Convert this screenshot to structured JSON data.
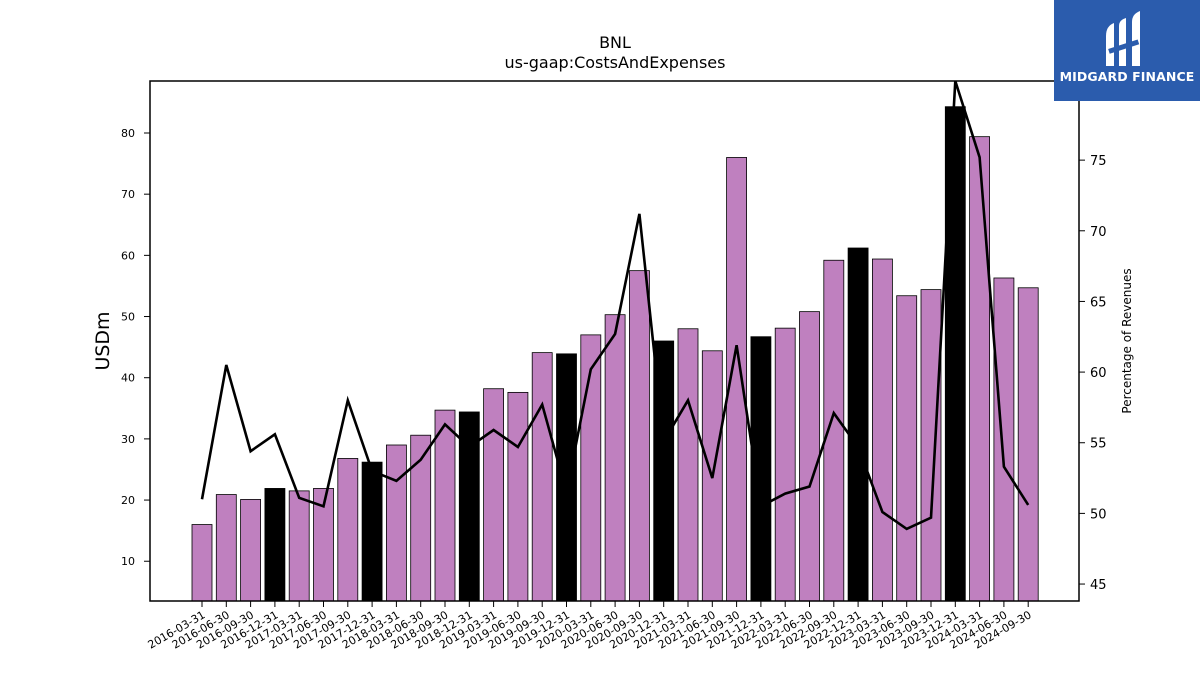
{
  "chart_data": {
    "type": "bar",
    "title": "BNL",
    "subtitle": "us-gaap:CostsAndExpenses",
    "ylabel": "USDm",
    "y2label": "Percentage of Revenues",
    "ylim": [
      3.5,
      88.5
    ],
    "y2lim": [
      43.8,
      80.6
    ],
    "yticks": [
      10,
      20,
      30,
      40,
      50,
      60,
      70,
      80
    ],
    "y2ticks": [
      45,
      50,
      55,
      60,
      65,
      70,
      75
    ],
    "categories": [
      "2016-03-31",
      "2016-06-30",
      "2016-09-30",
      "2016-12-31",
      "2017-03-31",
      "2017-06-30",
      "2017-09-30",
      "2017-12-31",
      "2018-03-31",
      "2018-06-30",
      "2018-09-30",
      "2018-12-31",
      "2019-03-31",
      "2019-06-30",
      "2019-09-30",
      "2019-12-31",
      "2020-03-31",
      "2020-06-30",
      "2020-09-30",
      "2020-12-31",
      "2021-03-31",
      "2021-06-30",
      "2021-09-30",
      "2021-12-31",
      "2022-03-31",
      "2022-06-30",
      "2022-09-30",
      "2022-12-31",
      "2023-03-31",
      "2023-06-30",
      "2023-09-30",
      "2023-12-31",
      "2024-03-31",
      "2024-06-30",
      "2024-09-30"
    ],
    "series": [
      {
        "type": "bar",
        "values": [
          16.0,
          20.9,
          20.1,
          21.9,
          21.5,
          21.9,
          26.8,
          26.2,
          29.0,
          30.6,
          34.7,
          34.4,
          38.2,
          37.6,
          44.1,
          43.9,
          47.0,
          50.3,
          57.5,
          46.0,
          48.0,
          44.4,
          76.0,
          46.7,
          48.1,
          50.8,
          59.2,
          61.2,
          59.4,
          53.4,
          54.4,
          84.3,
          79.4,
          56.3,
          54.7
        ],
        "highlight_indices": [
          3,
          7,
          11,
          15,
          19,
          23,
          27,
          31
        ]
      },
      {
        "type": "line",
        "axis": "right",
        "values": [
          51.0,
          60.5,
          54.4,
          55.6,
          51.1,
          50.5,
          58.0,
          53.0,
          52.3,
          53.8,
          56.3,
          54.7,
          55.9,
          54.7,
          57.7,
          51.5,
          60.2,
          62.7,
          71.2,
          55.1,
          58.0,
          52.5,
          61.9,
          50.5,
          51.4,
          51.9,
          57.1,
          54.7,
          50.1,
          48.9,
          49.7,
          80.6,
          75.2,
          53.3,
          50.6
        ]
      }
    ],
    "colors": {
      "bar": "#bf80bf",
      "highlight": "#000000",
      "line": "#000000"
    },
    "grid": false,
    "legend": "none"
  },
  "logo": {
    "text": "MIDGARD FINANCE",
    "background": "#2b5cad"
  }
}
